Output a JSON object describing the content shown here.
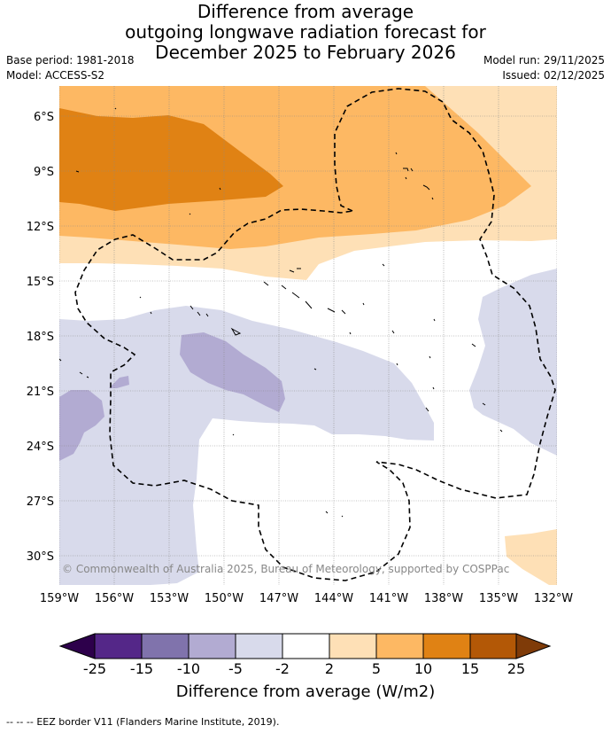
{
  "header": {
    "title_lines": [
      "Difference from average",
      "outgoing longwave radiation forecast for",
      "December 2025 to February 2026"
    ],
    "base_period": "Base period: 1981-2018",
    "model": "Model: ACCESS-S2",
    "model_run": "Model run: 29/11/2025",
    "issued": "Issued: 02/12/2025"
  },
  "map": {
    "lat_labels": [
      "6°S",
      "9°S",
      "12°S",
      "15°S",
      "18°S",
      "21°S",
      "24°S",
      "27°S",
      "30°S"
    ],
    "lon_labels": [
      "159°W",
      "156°W",
      "153°W",
      "150°W",
      "147°W",
      "144°W",
      "141°W",
      "138°W",
      "135°W",
      "132°W"
    ],
    "copyright": "© Commonwealth of Australia 2025, Bureau of Meteorology, supported by COSPPac"
  },
  "colorbar": {
    "tick_labels": [
      "-25",
      "-15",
      "-10",
      "-5",
      "-2",
      "2",
      "5",
      "10",
      "15",
      "25"
    ],
    "colors": {
      "below_min": "#2d004b",
      "c_n25_n15": "#542788",
      "c_n15_n10": "#8073ac",
      "c_n10_n5": "#b2abd2",
      "c_n5_n2": "#d8daeb",
      "c_n2_p2": "#ffffff",
      "c_p2_p5": "#fee0b6",
      "c_p5_p10": "#fdb863",
      "c_p10_p15": "#e08214",
      "c_p15_p25": "#b35806",
      "above_max": "#7f3b08"
    },
    "title": "Difference from average (W/m2)"
  },
  "footer": {
    "legend_symbol": "--  --  --",
    "legend_text": "EEZ border V11 (Flanders Marine Institute, 2019)."
  }
}
